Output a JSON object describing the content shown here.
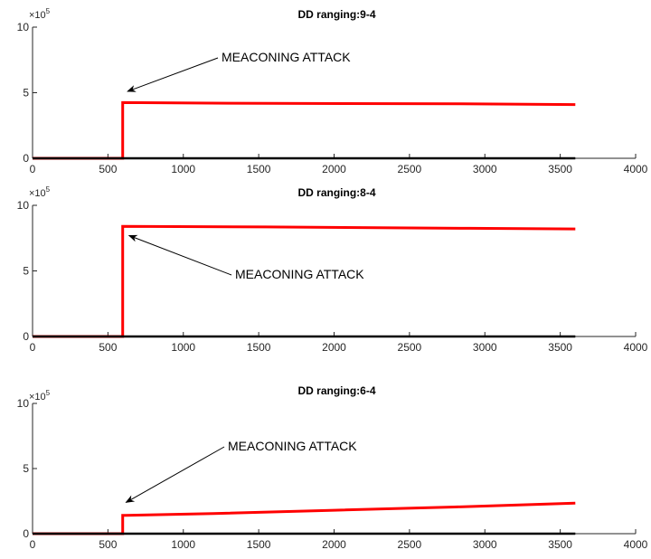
{
  "chart_data": [
    {
      "type": "line",
      "title": "DD ranging:9-4",
      "xlim": [
        0,
        4000
      ],
      "ylim": [
        0,
        1000000
      ],
      "xticks": [
        0,
        500,
        1000,
        1500,
        2000,
        2500,
        3000,
        3500,
        4000
      ],
      "yticks": [
        0,
        500000,
        1000000
      ],
      "ytick_labels": [
        "0",
        "5",
        "10"
      ],
      "y_exponent_label": "×10",
      "y_exponent_power": "5",
      "series": [
        {
          "color": "#ff0000",
          "x": [
            0,
            598,
            598,
            602,
            1300,
            2840,
            3600
          ],
          "y": [
            0,
            0,
            425000,
            425000,
            420000,
            415000,
            410000
          ]
        },
        {
          "color": "#000000",
          "x": [
            0,
            3600
          ],
          "y": [
            0,
            0
          ]
        }
      ],
      "annotation": {
        "text": "MEACONING ATTACK",
        "point": [
          630,
          510000
        ]
      }
    },
    {
      "type": "line",
      "title": "DD ranging:8-4",
      "xlim": [
        0,
        4000
      ],
      "ylim": [
        0,
        1000000
      ],
      "xticks": [
        0,
        500,
        1000,
        1500,
        2000,
        2500,
        3000,
        3500,
        4000
      ],
      "yticks": [
        0,
        500000,
        1000000
      ],
      "ytick_labels": [
        "0",
        "5",
        "10"
      ],
      "y_exponent_label": "×10",
      "y_exponent_power": "5",
      "series": [
        {
          "color": "#ff0000",
          "x": [
            0,
            598,
            598,
            602,
            1550,
            2900,
            3600
          ],
          "y": [
            0,
            0,
            840000,
            840000,
            835000,
            825000,
            820000
          ]
        },
        {
          "color": "#000000",
          "x": [
            0,
            3600
          ],
          "y": [
            0,
            0
          ]
        }
      ],
      "annotation": {
        "text": "MEACONING ATTACK",
        "point": [
          640,
          770000
        ]
      }
    },
    {
      "type": "line",
      "title": "DD ranging:6-4",
      "xlim": [
        0,
        4000
      ],
      "ylim": [
        0,
        1000000
      ],
      "xticks": [
        0,
        500,
        1000,
        1500,
        2000,
        2500,
        3000,
        3500,
        4000
      ],
      "yticks": [
        0,
        500000,
        1000000
      ],
      "ytick_labels": [
        "0",
        "5",
        "10"
      ],
      "y_exponent_label": "×10",
      "y_exponent_power": "5",
      "series": [
        {
          "color": "#ff0000",
          "x": [
            0,
            598,
            598,
            620,
            1200,
            2000,
            2800,
            3600
          ],
          "y": [
            0,
            0,
            140000,
            140000,
            155000,
            180000,
            205000,
            235000
          ]
        },
        {
          "color": "#000000",
          "x": [
            0,
            3600
          ],
          "y": [
            0,
            0
          ]
        }
      ],
      "annotation": {
        "text": "MEACONING ATTACK",
        "point": [
          620,
          240000
        ]
      }
    }
  ]
}
